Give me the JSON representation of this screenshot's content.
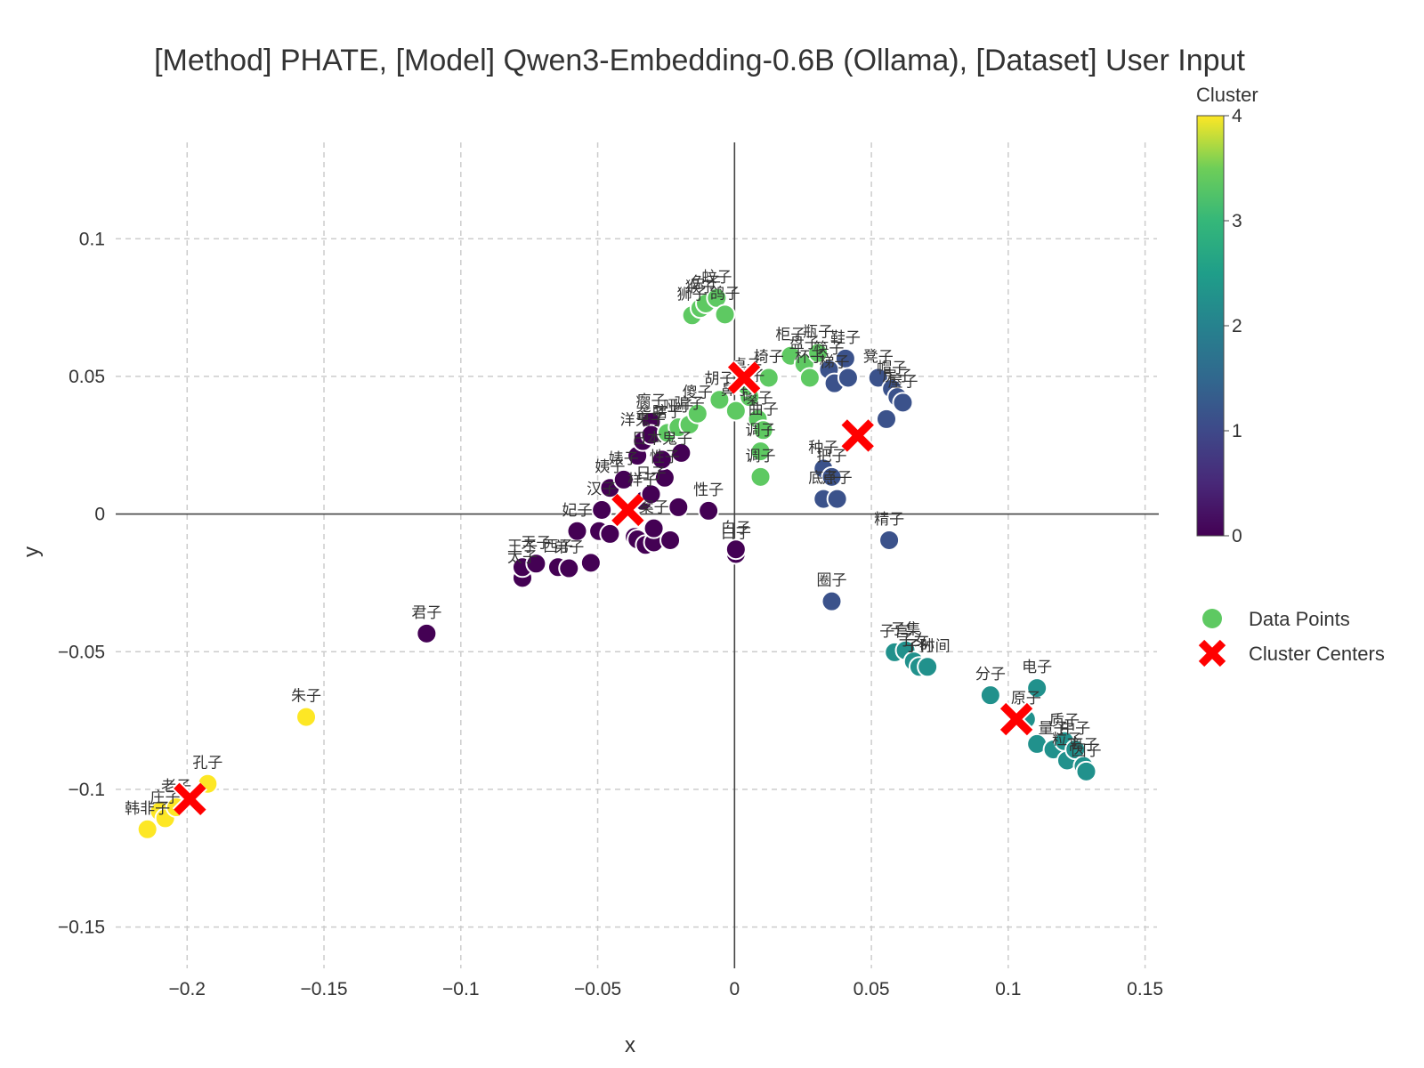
{
  "chart_data": {
    "type": "scatter",
    "title": "[Method] PHATE, [Model] Qwen3-Embedding-0.6B (Ollama), [Dataset] User Input",
    "xlabel": "x",
    "ylabel": "y",
    "xlim": [
      -0.23,
      0.155
    ],
    "ylim": [
      -0.165,
      0.135
    ],
    "xticks": [
      -0.2,
      -0.15,
      -0.1,
      -0.05,
      0,
      0.05,
      0.1,
      0.15
    ],
    "xtick_labels": [
      "−0.2",
      "−0.15",
      "−0.1",
      "−0.05",
      "0",
      "0.05",
      "0.1",
      "0.15"
    ],
    "yticks": [
      -0.15,
      -0.1,
      -0.05,
      0,
      0.05,
      0.1
    ],
    "ytick_labels": [
      "−0.15",
      "−0.1",
      "−0.05",
      "0",
      "0.05",
      "0.1"
    ],
    "grid": true,
    "colorbar": {
      "title": "Cluster",
      "colormap": "viridis",
      "range": [
        0,
        4
      ],
      "ticks": [
        0,
        1,
        2,
        3,
        4
      ],
      "tick_labels": [
        "0",
        "1",
        "2",
        "3",
        "4"
      ]
    },
    "legend": {
      "placement": "right",
      "entries": [
        "Data Points",
        "Cluster Centers"
      ]
    },
    "colors": {
      "c0": "#440154",
      "c1": "#3b528b",
      "c2": "#21918c",
      "c3": "#5ec962",
      "c4": "#fde725",
      "center": "#ff0000",
      "legend_point": "#5ec962"
    },
    "points": [
      {
        "x": -0.2145,
        "y": -0.1145,
        "c": 4,
        "label": "韩非子"
      },
      {
        "x": -0.21,
        "y": -0.108,
        "c": 4,
        "label": ""
      },
      {
        "x": -0.208,
        "y": -0.1105,
        "c": 4,
        "label": "庄子"
      },
      {
        "x": -0.204,
        "y": -0.1065,
        "c": 4,
        "label": "老子"
      },
      {
        "x": -0.1925,
        "y": -0.098,
        "c": 4,
        "label": "孔子"
      },
      {
        "x": -0.1565,
        "y": -0.0737,
        "c": 4,
        "label": "朱子"
      },
      {
        "x": -0.1125,
        "y": -0.0434,
        "c": 0,
        "label": "君子"
      },
      {
        "x": -0.0775,
        "y": -0.0232,
        "c": 0,
        "label": "太子"
      },
      {
        "x": -0.0775,
        "y": -0.0193,
        "c": 0,
        "label": "王子"
      },
      {
        "x": -0.0725,
        "y": -0.018,
        "c": 0,
        "label": "天子"
      },
      {
        "x": -0.0645,
        "y": -0.0193,
        "c": 0,
        "label": "西子"
      },
      {
        "x": -0.0605,
        "y": -0.0197,
        "c": 0,
        "label": "弟子"
      },
      {
        "x": -0.0525,
        "y": -0.0177,
        "c": 0,
        "label": ""
      },
      {
        "x": -0.0575,
        "y": -0.0062,
        "c": 0,
        "label": "妃子"
      },
      {
        "x": -0.0495,
        "y": -0.0062,
        "c": 0,
        "label": ""
      },
      {
        "x": -0.0455,
        "y": -0.0072,
        "c": 0,
        "label": ""
      },
      {
        "x": -0.0485,
        "y": 0.0015,
        "c": 0,
        "label": "汉子"
      },
      {
        "x": -0.0455,
        "y": 0.0095,
        "c": 0,
        "label": "姨子"
      },
      {
        "x": -0.0405,
        "y": 0.0125,
        "c": 0,
        "label": "婊子"
      },
      {
        "x": -0.0365,
        "y": -0.0083,
        "c": 0,
        "label": ""
      },
      {
        "x": -0.0355,
        "y": -0.0092,
        "c": 0,
        "label": ""
      },
      {
        "x": -0.0325,
        "y": -0.0112,
        "c": 0,
        "label": ""
      },
      {
        "x": -0.0295,
        "y": -0.0103,
        "c": 0,
        "label": ""
      },
      {
        "x": -0.0235,
        "y": -0.0095,
        "c": 0,
        "label": ""
      },
      {
        "x": -0.0295,
        "y": -0.0052,
        "c": 0,
        "label": "案子"
      },
      {
        "x": -0.0335,
        "y": 0.0048,
        "c": 0,
        "label": "样子"
      },
      {
        "x": -0.0305,
        "y": 0.0072,
        "c": 0,
        "label": "日子"
      },
      {
        "x": -0.0205,
        "y": 0.0025,
        "c": 0,
        "label": ""
      },
      {
        "x": -0.0255,
        "y": 0.0132,
        "c": 0,
        "label": "性子"
      },
      {
        "x": -0.0095,
        "y": 0.0012,
        "c": 0,
        "label": "性子"
      },
      {
        "x": -0.0265,
        "y": 0.0198,
        "c": 0,
        "label": "日本鬼子"
      },
      {
        "x": -0.0195,
        "y": 0.0222,
        "c": 0,
        "label": ""
      },
      {
        "x": -0.0355,
        "y": 0.0212,
        "c": 0,
        "label": ""
      },
      {
        "x": -0.0335,
        "y": 0.0265,
        "c": 0,
        "label": "洋鬼子"
      },
      {
        "x": -0.0305,
        "y": 0.0335,
        "c": 0,
        "label": "瘸子"
      },
      {
        "x": -0.0305,
        "y": 0.0288,
        "c": 0,
        "label": "聋子"
      },
      {
        "x": 0.0005,
        "y": -0.0145,
        "c": 0,
        "label": "白子"
      },
      {
        "x": 0.0005,
        "y": -0.0128,
        "c": 0,
        "label": "白子"
      },
      {
        "x": -0.0245,
        "y": 0.0295,
        "c": 3,
        "label": "瞎子"
      },
      {
        "x": -0.0205,
        "y": 0.0315,
        "c": 3,
        "label": "哑子"
      },
      {
        "x": -0.0165,
        "y": 0.0325,
        "c": 3,
        "label": "骗子"
      },
      {
        "x": -0.0135,
        "y": 0.0365,
        "c": 3,
        "label": "傻子"
      },
      {
        "x": -0.0055,
        "y": 0.0415,
        "c": 3,
        "label": "胡子"
      },
      {
        "x": 0.0005,
        "y": 0.0375,
        "c": 3,
        "label": "鼻子"
      },
      {
        "x": 0.0055,
        "y": 0.0425,
        "c": 3,
        "label": "毛子"
      },
      {
        "x": 0.0085,
        "y": 0.0345,
        "c": 3,
        "label": "嗓子"
      },
      {
        "x": 0.0105,
        "y": 0.0305,
        "c": 3,
        "label": "曲子"
      },
      {
        "x": 0.0095,
        "y": 0.0228,
        "c": 3,
        "label": "调子"
      },
      {
        "x": 0.0095,
        "y": 0.0135,
        "c": 3,
        "label": "调子"
      },
      {
        "x": -0.0155,
        "y": 0.0722,
        "c": 3,
        "label": "狮子"
      },
      {
        "x": -0.0125,
        "y": 0.0748,
        "c": 3,
        "label": "猴子"
      },
      {
        "x": -0.0105,
        "y": 0.0765,
        "c": 3,
        "label": "兔子"
      },
      {
        "x": -0.0065,
        "y": 0.0785,
        "c": 3,
        "label": "蚊子"
      },
      {
        "x": -0.0035,
        "y": 0.0725,
        "c": 3,
        "label": "鸽子"
      },
      {
        "x": 0.0045,
        "y": 0.0465,
        "c": 3,
        "label": "桌子"
      },
      {
        "x": 0.0125,
        "y": 0.0495,
        "c": 3,
        "label": "椅子"
      },
      {
        "x": 0.0205,
        "y": 0.0575,
        "c": 3,
        "label": "柜子"
      },
      {
        "x": 0.0255,
        "y": 0.0545,
        "c": 3,
        "label": "盘子"
      },
      {
        "x": 0.0275,
        "y": 0.0495,
        "c": 3,
        "label": "杯子"
      },
      {
        "x": 0.0305,
        "y": 0.0585,
        "c": 3,
        "label": "瓶子"
      },
      {
        "x": 0.0345,
        "y": 0.0525,
        "c": 1,
        "label": "筷子"
      },
      {
        "x": 0.0365,
        "y": 0.0475,
        "c": 1,
        "label": "梯子"
      },
      {
        "x": 0.0405,
        "y": 0.0565,
        "c": 1,
        "label": "鞋子"
      },
      {
        "x": 0.0415,
        "y": 0.0495,
        "c": 1,
        "label": ""
      },
      {
        "x": 0.0525,
        "y": 0.0495,
        "c": 1,
        "label": "凳子"
      },
      {
        "x": 0.0575,
        "y": 0.0455,
        "c": 1,
        "label": "帽子"
      },
      {
        "x": 0.0595,
        "y": 0.0425,
        "c": 1,
        "label": "房子"
      },
      {
        "x": 0.0615,
        "y": 0.0405,
        "c": 1,
        "label": "屋子"
      },
      {
        "x": 0.0555,
        "y": 0.0345,
        "c": 1,
        "label": ""
      },
      {
        "x": 0.0325,
        "y": 0.0165,
        "c": 1,
        "label": "种子"
      },
      {
        "x": 0.0355,
        "y": 0.0135,
        "c": 1,
        "label": "把子"
      },
      {
        "x": 0.0325,
        "y": 0.0055,
        "c": 1,
        "label": "底子"
      },
      {
        "x": 0.0375,
        "y": 0.0055,
        "c": 1,
        "label": "点子"
      },
      {
        "x": 0.0565,
        "y": -0.0095,
        "c": 1,
        "label": "精子"
      },
      {
        "x": 0.0355,
        "y": -0.0317,
        "c": 1,
        "label": "圈子"
      },
      {
        "x": 0.0585,
        "y": -0.0502,
        "c": 2,
        "label": "子宫"
      },
      {
        "x": 0.0625,
        "y": -0.0495,
        "c": 2,
        "label": "子集"
      },
      {
        "x": 0.0655,
        "y": -0.0535,
        "c": 2,
        "label": "子女"
      },
      {
        "x": 0.0675,
        "y": -0.0555,
        "c": 2,
        "label": "子孙"
      },
      {
        "x": 0.0705,
        "y": -0.0555,
        "c": 2,
        "label": "子时间"
      },
      {
        "x": 0.0935,
        "y": -0.0658,
        "c": 2,
        "label": "分子"
      },
      {
        "x": 0.1105,
        "y": -0.0632,
        "c": 2,
        "label": "电子"
      },
      {
        "x": 0.1065,
        "y": -0.0745,
        "c": 2,
        "label": "原子"
      },
      {
        "x": 0.1105,
        "y": -0.0835,
        "c": 2,
        "label": ""
      },
      {
        "x": 0.1165,
        "y": -0.0855,
        "c": 2,
        "label": "量子"
      },
      {
        "x": 0.1205,
        "y": -0.0825,
        "c": 2,
        "label": "质子"
      },
      {
        "x": 0.1215,
        "y": -0.0895,
        "c": 2,
        "label": "粒子"
      },
      {
        "x": 0.1245,
        "y": -0.0855,
        "c": 2,
        "label": "中子"
      },
      {
        "x": 0.1275,
        "y": -0.0915,
        "c": 2,
        "label": "离子"
      },
      {
        "x": 0.1285,
        "y": -0.0935,
        "c": 2,
        "label": "因子"
      }
    ],
    "centers": [
      {
        "x": -0.199,
        "y": -0.1035
      },
      {
        "x": -0.039,
        "y": 0.0015
      },
      {
        "x": 0.0035,
        "y": 0.0495
      },
      {
        "x": 0.045,
        "y": 0.0285
      },
      {
        "x": 0.103,
        "y": -0.0745
      }
    ]
  }
}
